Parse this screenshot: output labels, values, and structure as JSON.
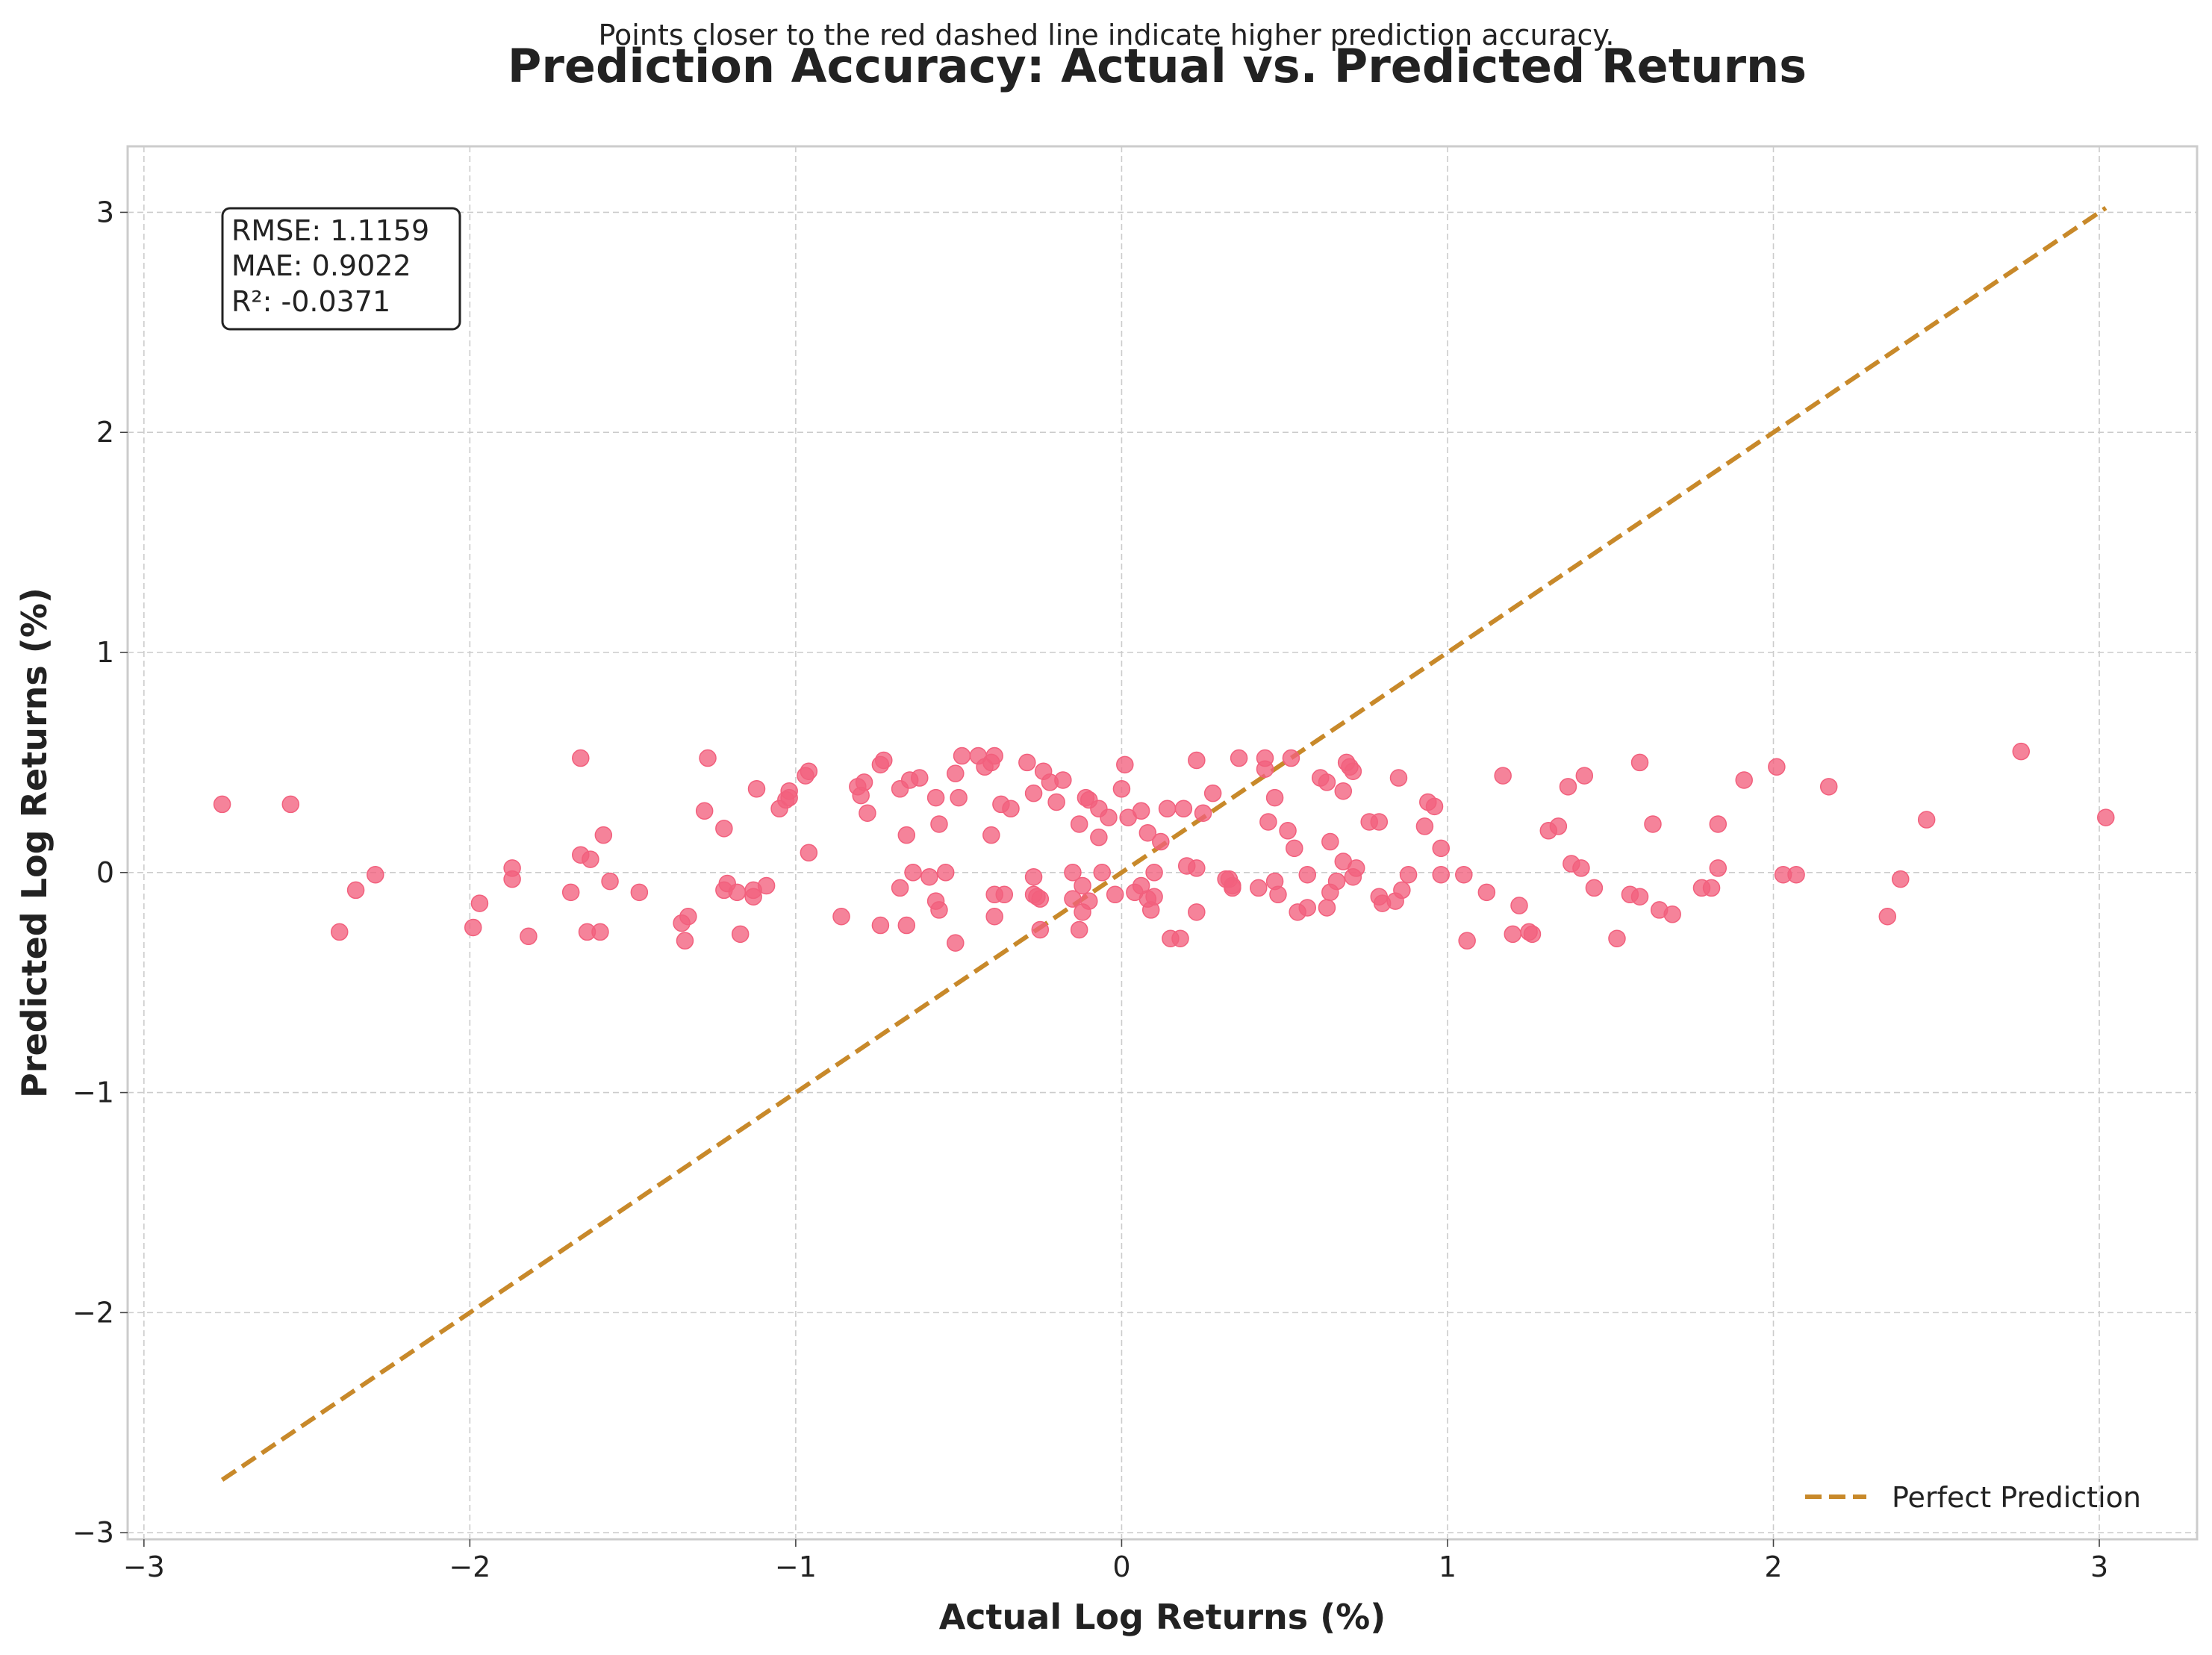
{
  "chart_data": {
    "type": "scatter",
    "title": "Prediction Accuracy: Actual vs. Predicted Returns",
    "subtitle": "Points closer to the red dashed line indicate higher prediction accuracy.",
    "xlabel": "Actual Log Returns (%)",
    "ylabel": "Predicted Log Returns (%)",
    "xlim": [
      -3.05,
      3.3
    ],
    "ylim": [
      -3.03,
      3.3
    ],
    "x_ticks": [
      -3,
      -2,
      -1,
      0,
      1,
      2,
      3
    ],
    "y_ticks": [
      -3,
      -2,
      -1,
      0,
      1,
      2,
      3
    ],
    "x_tick_labels": [
      "−3",
      "−2",
      "−1",
      "0",
      "1",
      "2",
      "3"
    ],
    "y_tick_labels": [
      "−3",
      "−2",
      "−1",
      "0",
      "1",
      "2",
      "3"
    ],
    "grid": true,
    "legend_position": "bottom-right",
    "stats": [
      "RMSE: 1.1159",
      "MAE: 0.9022",
      "R²: -0.0371"
    ],
    "colors": {
      "points": "#f2607d",
      "reference_line": "#c8892a",
      "frame": "#cccccc"
    },
    "series": [
      {
        "kind": "scatter",
        "points": [
          [
            -2.76,
            0.31
          ],
          [
            -2.55,
            0.31
          ],
          [
            -2.4,
            -0.27
          ],
          [
            -2.35,
            -0.08
          ],
          [
            -2.29,
            -0.01
          ],
          [
            -1.99,
            -0.25
          ],
          [
            -1.97,
            -0.14
          ],
          [
            -1.87,
            0.02
          ],
          [
            -1.87,
            -0.03
          ],
          [
            -1.82,
            -0.29
          ],
          [
            -1.69,
            -0.09
          ],
          [
            -1.66,
            0.08
          ],
          [
            -1.66,
            0.52
          ],
          [
            -1.64,
            -0.27
          ],
          [
            -1.63,
            0.06
          ],
          [
            -1.6,
            -0.27
          ],
          [
            -1.59,
            0.17
          ],
          [
            -1.57,
            -0.04
          ],
          [
            -1.48,
            -0.09
          ],
          [
            -1.35,
            -0.23
          ],
          [
            -1.34,
            -0.31
          ],
          [
            -1.33,
            -0.2
          ],
          [
            -1.28,
            0.28
          ],
          [
            -1.27,
            0.52
          ],
          [
            -1.22,
            0.2
          ],
          [
            -1.22,
            -0.08
          ],
          [
            -1.21,
            -0.05
          ],
          [
            -1.18,
            -0.09
          ],
          [
            -1.17,
            -0.28
          ],
          [
            -1.13,
            -0.08
          ],
          [
            -1.13,
            -0.11
          ],
          [
            -1.12,
            0.38
          ],
          [
            -1.09,
            -0.06
          ],
          [
            -1.05,
            0.29
          ],
          [
            -1.03,
            0.33
          ],
          [
            -1.02,
            0.37
          ],
          [
            -1.02,
            0.34
          ],
          [
            -0.97,
            0.44
          ],
          [
            -0.96,
            0.46
          ],
          [
            -0.96,
            0.09
          ],
          [
            -0.86,
            -0.2
          ],
          [
            -0.81,
            0.39
          ],
          [
            -0.8,
            0.35
          ],
          [
            -0.79,
            0.41
          ],
          [
            -0.78,
            0.27
          ],
          [
            -0.74,
            0.49
          ],
          [
            -0.74,
            -0.24
          ],
          [
            -0.73,
            0.51
          ],
          [
            -0.68,
            0.38
          ],
          [
            -0.68,
            -0.07
          ],
          [
            -0.66,
            -0.24
          ],
          [
            -0.66,
            0.17
          ],
          [
            -0.65,
            0.42
          ],
          [
            -0.64,
            0.0
          ],
          [
            -0.62,
            0.43
          ],
          [
            -0.59,
            -0.02
          ],
          [
            -0.57,
            0.34
          ],
          [
            -0.57,
            -0.13
          ],
          [
            -0.56,
            0.22
          ],
          [
            -0.56,
            -0.17
          ],
          [
            -0.54,
            0.0
          ],
          [
            -0.51,
            -0.32
          ],
          [
            -0.51,
            0.45
          ],
          [
            -0.5,
            0.34
          ],
          [
            -0.49,
            0.53
          ],
          [
            -0.44,
            0.53
          ],
          [
            -0.42,
            0.48
          ],
          [
            -0.4,
            0.5
          ],
          [
            -0.4,
            0.17
          ],
          [
            -0.39,
            0.53
          ],
          [
            -0.39,
            -0.2
          ],
          [
            -0.39,
            -0.1
          ],
          [
            -0.37,
            0.31
          ],
          [
            -0.36,
            -0.1
          ],
          [
            -0.34,
            0.29
          ],
          [
            -0.29,
            0.5
          ],
          [
            -0.27,
            -0.02
          ],
          [
            -0.27,
            0.36
          ],
          [
            -0.27,
            -0.1
          ],
          [
            -0.26,
            -0.11
          ],
          [
            -0.25,
            -0.12
          ],
          [
            -0.25,
            -0.26
          ],
          [
            -0.24,
            0.46
          ],
          [
            -0.22,
            0.41
          ],
          [
            -0.2,
            0.32
          ],
          [
            -0.18,
            0.42
          ],
          [
            -0.15,
            0.0
          ],
          [
            -0.15,
            -0.12
          ],
          [
            -0.13,
            0.22
          ],
          [
            -0.13,
            -0.26
          ],
          [
            -0.12,
            -0.06
          ],
          [
            -0.12,
            -0.18
          ],
          [
            -0.11,
            0.34
          ],
          [
            -0.1,
            0.33
          ],
          [
            -0.1,
            -0.13
          ],
          [
            -0.07,
            0.29
          ],
          [
            -0.07,
            0.16
          ],
          [
            -0.06,
            0.0
          ],
          [
            -0.04,
            0.25
          ],
          [
            -0.02,
            -0.1
          ],
          [
            0.0,
            0.38
          ],
          [
            0.01,
            0.49
          ],
          [
            0.02,
            0.25
          ],
          [
            0.04,
            -0.09
          ],
          [
            0.06,
            0.28
          ],
          [
            0.06,
            -0.06
          ],
          [
            0.08,
            -0.12
          ],
          [
            0.08,
            0.18
          ],
          [
            0.09,
            -0.17
          ],
          [
            0.1,
            0.0
          ],
          [
            0.1,
            -0.11
          ],
          [
            0.12,
            0.14
          ],
          [
            0.14,
            0.29
          ],
          [
            0.15,
            -0.3
          ],
          [
            0.18,
            -0.3
          ],
          [
            0.19,
            0.29
          ],
          [
            0.2,
            0.03
          ],
          [
            0.23,
            0.02
          ],
          [
            0.23,
            -0.18
          ],
          [
            0.23,
            0.51
          ],
          [
            0.25,
            0.27
          ],
          [
            0.28,
            0.36
          ],
          [
            0.32,
            -0.03
          ],
          [
            0.33,
            -0.03
          ],
          [
            0.34,
            -0.07
          ],
          [
            0.34,
            -0.06
          ],
          [
            0.36,
            0.52
          ],
          [
            0.42,
            -0.07
          ],
          [
            0.44,
            0.52
          ],
          [
            0.44,
            0.47
          ],
          [
            0.45,
            0.23
          ],
          [
            0.47,
            -0.04
          ],
          [
            0.47,
            0.34
          ],
          [
            0.48,
            -0.1
          ],
          [
            0.51,
            0.19
          ],
          [
            0.52,
            0.52
          ],
          [
            0.53,
            0.11
          ],
          [
            0.54,
            -0.18
          ],
          [
            0.57,
            -0.01
          ],
          [
            0.57,
            -0.16
          ],
          [
            0.61,
            0.43
          ],
          [
            0.63,
            0.41
          ],
          [
            0.63,
            -0.16
          ],
          [
            0.64,
            0.14
          ],
          [
            0.64,
            -0.09
          ],
          [
            0.66,
            -0.04
          ],
          [
            0.68,
            0.37
          ],
          [
            0.68,
            0.05
          ],
          [
            0.69,
            0.5
          ],
          [
            0.7,
            0.48
          ],
          [
            0.71,
            0.46
          ],
          [
            0.71,
            -0.02
          ],
          [
            0.72,
            0.02
          ],
          [
            0.76,
            0.23
          ],
          [
            0.79,
            -0.11
          ],
          [
            0.79,
            0.23
          ],
          [
            0.8,
            -0.14
          ],
          [
            0.84,
            -0.13
          ],
          [
            0.85,
            0.43
          ],
          [
            0.86,
            -0.08
          ],
          [
            0.88,
            -0.01
          ],
          [
            0.93,
            0.21
          ],
          [
            0.94,
            0.32
          ],
          [
            0.96,
            0.3
          ],
          [
            0.98,
            0.11
          ],
          [
            0.98,
            -0.01
          ],
          [
            1.05,
            -0.01
          ],
          [
            1.06,
            -0.31
          ],
          [
            1.12,
            -0.09
          ],
          [
            1.17,
            0.44
          ],
          [
            1.2,
            -0.28
          ],
          [
            1.22,
            -0.15
          ],
          [
            1.25,
            -0.27
          ],
          [
            1.26,
            -0.28
          ],
          [
            1.31,
            0.19
          ],
          [
            1.34,
            0.21
          ],
          [
            1.37,
            0.39
          ],
          [
            1.38,
            0.04
          ],
          [
            1.41,
            0.02
          ],
          [
            1.42,
            0.44
          ],
          [
            1.45,
            -0.07
          ],
          [
            1.52,
            -0.3
          ],
          [
            1.56,
            -0.1
          ],
          [
            1.59,
            0.5
          ],
          [
            1.59,
            -0.11
          ],
          [
            1.63,
            0.22
          ],
          [
            1.65,
            -0.17
          ],
          [
            1.69,
            -0.19
          ],
          [
            1.78,
            -0.07
          ],
          [
            1.81,
            -0.07
          ],
          [
            1.83,
            0.22
          ],
          [
            1.83,
            0.02
          ],
          [
            1.91,
            0.42
          ],
          [
            2.01,
            0.48
          ],
          [
            2.03,
            -0.01
          ],
          [
            2.07,
            -0.01
          ],
          [
            2.17,
            0.39
          ],
          [
            2.35,
            -0.2
          ],
          [
            2.39,
            -0.03
          ],
          [
            2.47,
            0.24
          ],
          [
            2.76,
            0.55
          ],
          [
            3.02,
            0.25
          ]
        ]
      },
      {
        "kind": "line",
        "name": "Perfect Prediction",
        "x": [
          -2.76,
          3.02
        ],
        "y": [
          -2.76,
          3.02
        ]
      }
    ]
  }
}
